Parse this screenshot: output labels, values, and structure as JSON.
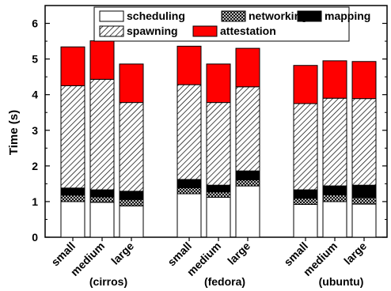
{
  "chart_data": {
    "type": "bar",
    "stacked": true,
    "ylabel": "Time (s)",
    "ylim": [
      0,
      6.5
    ],
    "yticks": [
      0,
      1,
      2,
      3,
      4,
      5,
      6
    ],
    "grid": false,
    "legend_position": "top",
    "groups": [
      {
        "label": "(cirros)",
        "categories": [
          "small",
          "medium",
          "large"
        ]
      },
      {
        "label": "(fedora)",
        "categories": [
          "small",
          "medium",
          "large"
        ]
      },
      {
        "label": "(ubuntu)",
        "categories": [
          "small",
          "medium",
          "large"
        ]
      }
    ],
    "series": [
      {
        "name": "scheduling",
        "pattern": "white",
        "values": [
          1.0,
          0.98,
          0.88,
          1.22,
          1.12,
          1.44,
          0.92,
          1.0,
          0.93
        ]
      },
      {
        "name": "networking",
        "pattern": "crosshatch",
        "values": [
          0.18,
          0.15,
          0.18,
          0.17,
          0.15,
          0.17,
          0.17,
          0.19,
          0.18
        ]
      },
      {
        "name": "mapping",
        "pattern": "black",
        "values": [
          0.2,
          0.2,
          0.23,
          0.23,
          0.19,
          0.25,
          0.24,
          0.25,
          0.35
        ]
      },
      {
        "name": "spawning",
        "pattern": "diagonal",
        "values": [
          2.87,
          3.1,
          2.49,
          2.66,
          2.32,
          2.36,
          2.42,
          2.46,
          2.43
        ]
      },
      {
        "name": "attestation",
        "pattern": "red",
        "values": [
          1.09,
          1.08,
          1.08,
          1.08,
          1.08,
          1.08,
          1.07,
          1.05,
          1.04
        ]
      }
    ],
    "colors": {
      "attestation": "#ff0000",
      "mapping": "#000000",
      "scheduling": "#ffffff",
      "frame": "#000000"
    }
  }
}
